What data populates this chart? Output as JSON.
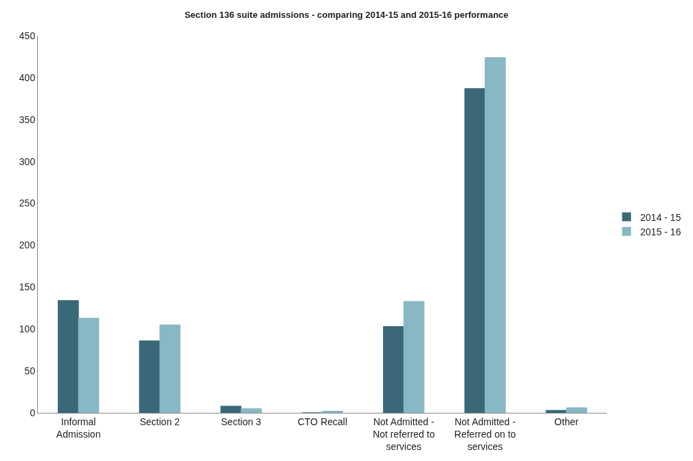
{
  "chart_data": {
    "type": "bar",
    "title": "Section 136 suite admissions - comparing 2014-15 and 2015-16 performance",
    "categories": [
      "Informal Admission",
      "Section 2",
      "Section 3",
      "CTO Recall",
      "Not Admitted - Not referred to services",
      "Not Admitted - Referred on to services",
      "Other"
    ],
    "series": [
      {
        "name": "2014 - 15",
        "color": "#3a6879",
        "values": [
          134,
          86,
          8,
          0,
          103,
          387,
          3
        ]
      },
      {
        "name": "2015 - 16",
        "color": "#88b8c4",
        "values": [
          113,
          105,
          5,
          2,
          133,
          424,
          6
        ]
      }
    ],
    "ylim": [
      0,
      450
    ],
    "yticks": [
      0,
      50,
      100,
      150,
      200,
      250,
      300,
      350,
      400,
      450
    ],
    "grid": false,
    "legend": "right"
  }
}
